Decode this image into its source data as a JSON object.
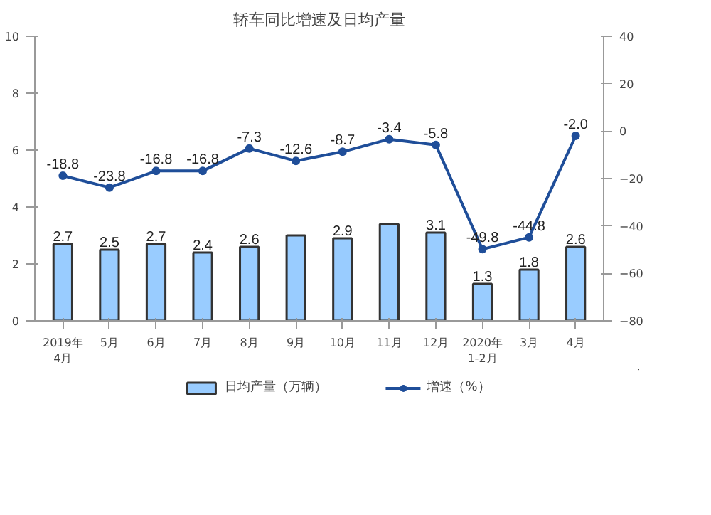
{
  "chart_data": {
    "type": "bar",
    "title": "轿车同比增速及日均产量",
    "categories": [
      "2019年\n4月",
      "5月",
      "6月",
      "7月",
      "8月",
      "9月",
      "10月",
      "11月",
      "12月",
      "2020年\n1-2月",
      "3月",
      "4月"
    ],
    "series": [
      {
        "name": "日均产量（万辆）",
        "type": "bar",
        "color": "#99ccff",
        "values": [
          2.7,
          2.5,
          2.7,
          2.4,
          2.6,
          3.0,
          2.9,
          3.4,
          3.1,
          1.3,
          1.8,
          2.6
        ],
        "value_labels": [
          "2.7",
          "2.5",
          "2.7",
          "2.4",
          "2.6",
          null,
          "2.9",
          null,
          "3.1",
          "1.3",
          "1.8",
          "2.6"
        ]
      },
      {
        "name": "增速（%）",
        "type": "line",
        "axis": "y2",
        "color": "#1f4e99",
        "marker": "circle",
        "values": [
          -18.8,
          -23.8,
          -16.8,
          -16.8,
          -7.3,
          -12.6,
          -8.7,
          -3.4,
          -5.8,
          -49.8,
          -44.8,
          -2.0
        ],
        "value_labels": [
          "-18.8",
          "-23.8",
          "-16.8",
          "-16.8",
          "-7.3",
          "-12.6",
          "-8.7",
          "-3.4",
          "-5.8",
          "-49.8",
          "-44.8",
          "-2.0"
        ]
      }
    ],
    "ylim": [
      0,
      10
    ],
    "yticks": [
      0,
      2,
      4,
      6,
      8,
      10
    ],
    "y2lim": [
      -80,
      40
    ],
    "y2ticks": [
      -80,
      -60,
      -40,
      -20,
      0,
      20,
      40
    ],
    "grid": false,
    "legend": "bottom"
  }
}
